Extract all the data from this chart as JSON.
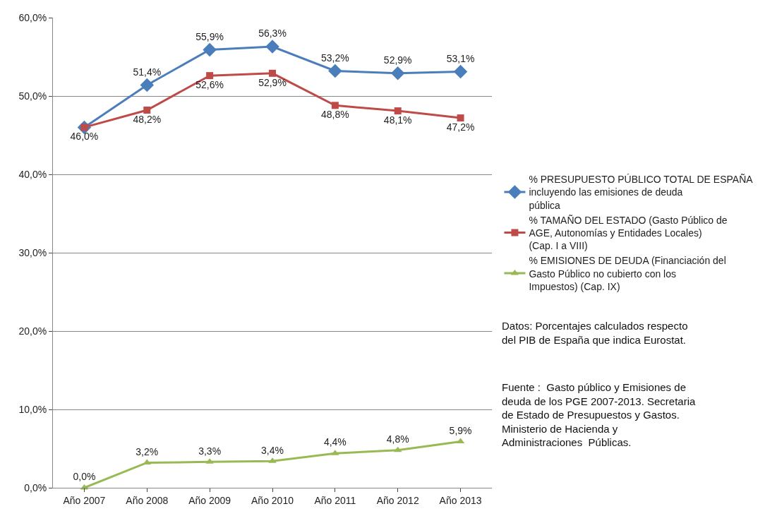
{
  "chart_data": {
    "type": "line",
    "categories": [
      "Año 2007",
      "Año 2008",
      "Año 2009",
      "Año 2010",
      "Año 2011",
      "Año 2012",
      "Año 2013"
    ],
    "series": [
      {
        "name": "% PRESUPUESTO PÚBLICO TOTAL DE ESPAÑA incluyendo las emisiones de deuda pública",
        "color": "#4a7ebb",
        "marker": "diamond",
        "values": [
          46.0,
          51.4,
          55.9,
          56.3,
          53.2,
          52.9,
          53.1
        ],
        "value_labels": [
          null,
          "51,4%",
          "55,9%",
          "56,3%",
          "53,2%",
          "52,9%",
          "53,1%"
        ]
      },
      {
        "name": "% TAMAÑO DEL ESTADO (Gasto Público de AGE, Autonomías y Entidades Locales) (Cap. I a VIII)",
        "color": "#be4b48",
        "marker": "square",
        "values": [
          46.0,
          48.2,
          52.6,
          52.9,
          48.8,
          48.1,
          47.2
        ],
        "value_labels": [
          "46,0%",
          "48,2%",
          "52,6%",
          "52,9%",
          "48,8%",
          "48,1%",
          "47,2%"
        ]
      },
      {
        "name": "% EMISIONES DE DEUDA (Financiación del Gasto Público no cubierto con los Impuestos) (Cap. IX)",
        "color": "#98b954",
        "marker": "triangle",
        "values": [
          0.0,
          3.2,
          3.3,
          3.4,
          4.4,
          4.8,
          5.9
        ],
        "value_labels": [
          "0,0%",
          "3,2%",
          "3,3%",
          "3,4%",
          "4,4%",
          "4,8%",
          "5,9%"
        ]
      }
    ],
    "ylim": [
      0,
      60
    ],
    "yticks": [
      {
        "value": 0,
        "label": "0,0%"
      },
      {
        "value": 10,
        "label": "10,0%"
      },
      {
        "value": 20,
        "label": "20,0%"
      },
      {
        "value": 30,
        "label": "30,0%"
      },
      {
        "value": 40,
        "label": "40,0%"
      },
      {
        "value": 50,
        "label": "50,0%"
      },
      {
        "value": 60,
        "label": "60,0%"
      }
    ],
    "grid": "y",
    "legend": "right",
    "line_style": "solid",
    "annotations": [
      "Datos: Porcentajes calculados respecto del PIB de España que indica Eurostat.",
      "Fuente :  Gasto público y Emisiones de deuda de los PGE 2007-2013. Secretaria de Estado de Presupuestos y Gastos. Ministerio de Hacienda y Administraciones  Públicas."
    ]
  }
}
